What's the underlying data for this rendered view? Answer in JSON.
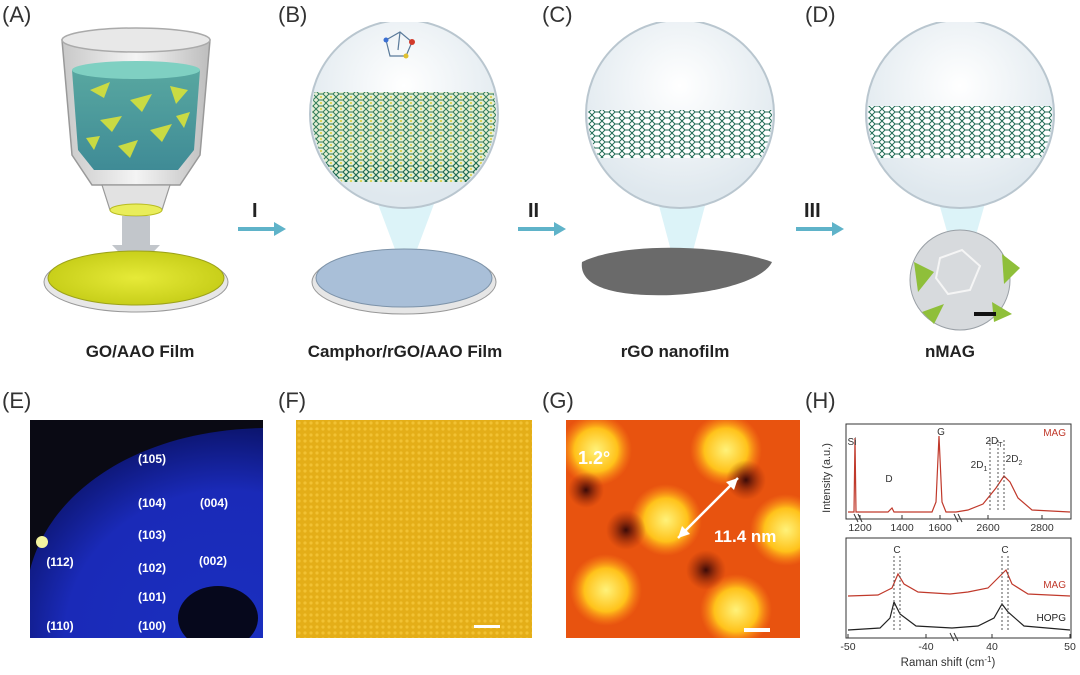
{
  "panels": {
    "A": {
      "label": "(A)",
      "caption": "GO/AAO Film"
    },
    "B": {
      "label": "(B)",
      "caption": "Camphor/rGO/AAO Film"
    },
    "C": {
      "label": "(C)",
      "caption": "rGO nanofilm"
    },
    "D": {
      "label": "(D)",
      "caption": "nMAG"
    },
    "E": {
      "label": "(E)",
      "peaks": [
        "(105)",
        "(104)",
        "(004)",
        "(103)",
        "(112)",
        "(102)",
        "(002)",
        "(101)",
        "(110)",
        "(100)"
      ]
    },
    "F": {
      "label": "(F)"
    },
    "G": {
      "label": "(G)",
      "angle": "1.2°",
      "period": "11.4 nm"
    },
    "H": {
      "label": "(H)"
    }
  },
  "steps": [
    "I",
    "II",
    "III"
  ],
  "chart_data": [
    {
      "type": "line",
      "title": "",
      "xlabel": "Raman shift (cm-1)",
      "ylabel": "Intensity (a.u.)",
      "xlim_segments": [
        [
          1120,
          1680
        ],
        [
          2520,
          2920
        ]
      ],
      "x_ticks": [
        "1200",
        "1400",
        "1600",
        "2600",
        "2800"
      ],
      "series": [
        {
          "name": "MAG"
        }
      ],
      "peak_labels": [
        "Si",
        "D",
        "G",
        "2D",
        "2D",
        "2D"
      ],
      "peak_subscripts": [
        "1",
        "T",
        "2"
      ]
    },
    {
      "type": "line",
      "title": "",
      "xlabel": "Raman shift (cm",
      "xlabel_sup": "-1",
      "xlabel_end": ")",
      "x_ticks": [
        "-50",
        "-40",
        "40",
        "50"
      ],
      "series": [
        {
          "name": "MAG"
        },
        {
          "name": "HOPG"
        }
      ],
      "peak_labels": [
        "C",
        "C"
      ]
    }
  ]
}
